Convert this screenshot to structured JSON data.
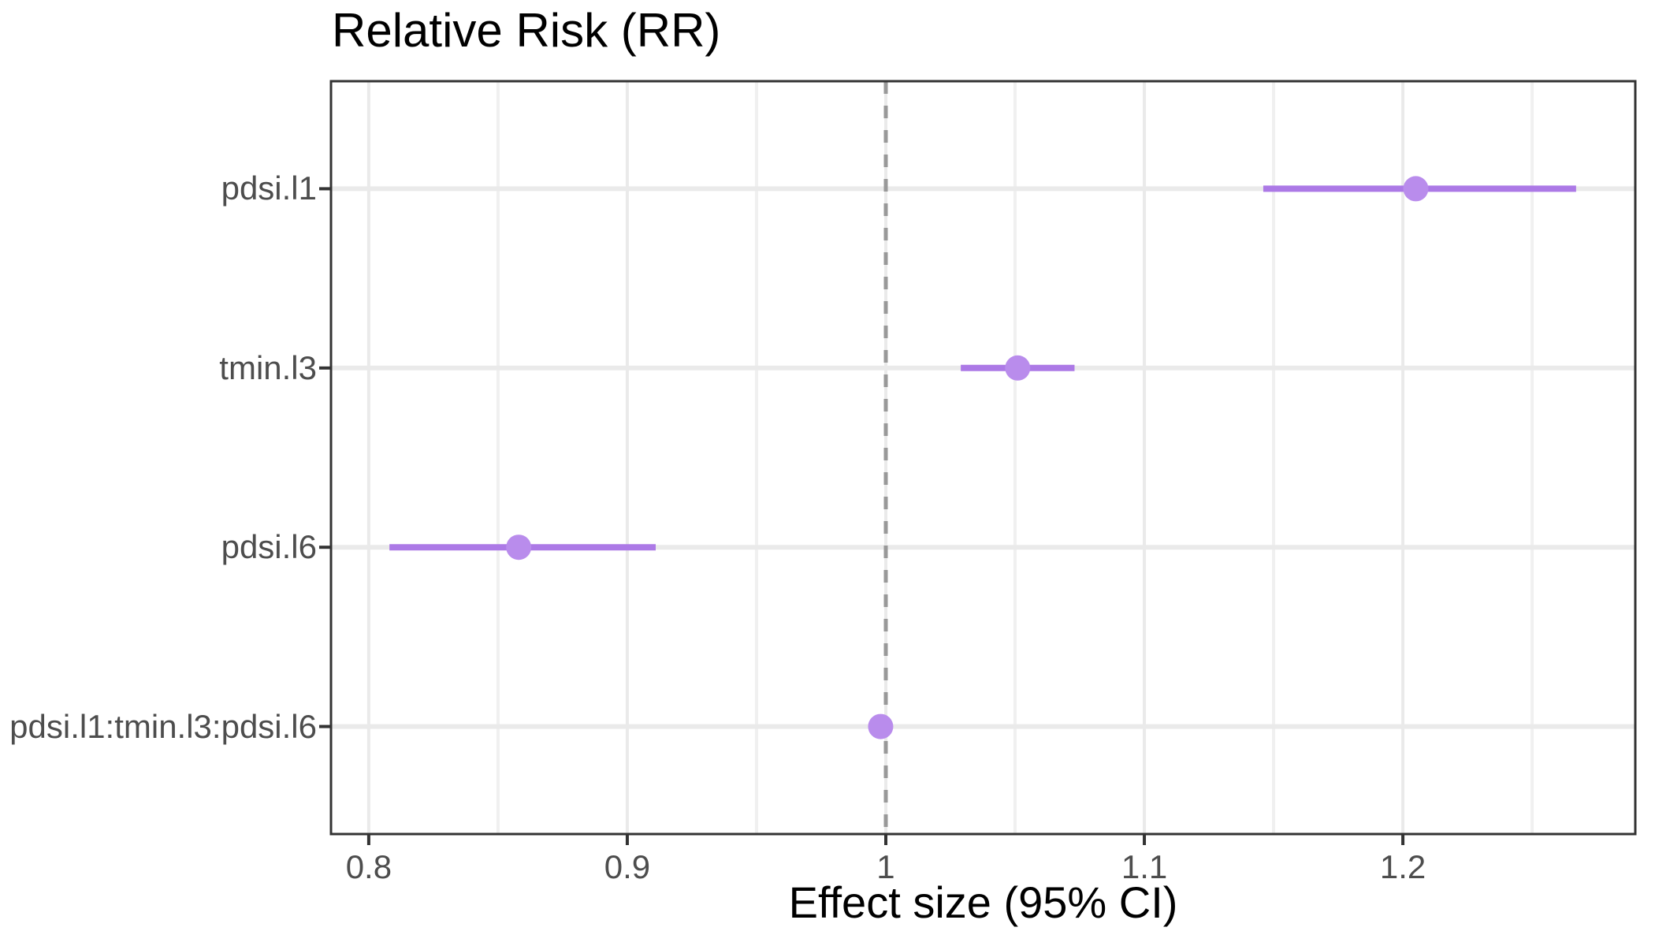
{
  "chart_data": {
    "type": "scatter",
    "subtype": "forest-plot-with-error-bars",
    "title": "Relative Risk (RR)",
    "xlabel": "Effect size (95% CI)",
    "ylabel": "",
    "categories": [
      "pdsi.l1",
      "tmin.l3",
      "pdsi.l6",
      "pdsi.l1:tmin.l3:pdsi.l6"
    ],
    "series": [
      {
        "name": "Relative Risk",
        "points": [
          {
            "label": "pdsi.l1",
            "estimate": 1.205,
            "ci_low": 1.146,
            "ci_high": 1.267
          },
          {
            "label": "tmin.l3",
            "estimate": 1.051,
            "ci_low": 1.029,
            "ci_high": 1.073
          },
          {
            "label": "pdsi.l6",
            "estimate": 0.858,
            "ci_low": 0.808,
            "ci_high": 0.911
          },
          {
            "label": "pdsi.l1:tmin.l3:pdsi.l6",
            "estimate": 0.998,
            "ci_low": 0.994,
            "ci_high": 1.002
          }
        ]
      }
    ],
    "x_tick_values": [
      0.8,
      0.9,
      1.0,
      1.1,
      1.2
    ],
    "x_tick_labels": [
      "0.8",
      "0.9",
      "1",
      "1.1",
      "1.2"
    ],
    "x_minor_tick_values": [
      0.85,
      0.95,
      1.05,
      1.15,
      1.25
    ],
    "xlim": [
      0.7854,
      1.2899
    ],
    "reference_line": {
      "x": 1.0,
      "style": "dashed"
    },
    "grid": "major-and-minor-x, major-y",
    "legend": "none",
    "colors": {
      "point": "#b98cec",
      "ci_line": "#ac79e6",
      "reference_line": "#999999",
      "grid_major": "#eaeaea",
      "grid_minor": "#f0f0f0",
      "panel_border": "#333333",
      "tick_mark": "#333333",
      "axis_text": "#4d4d4d",
      "title_text": "#000000",
      "background": "#ffffff"
    }
  }
}
